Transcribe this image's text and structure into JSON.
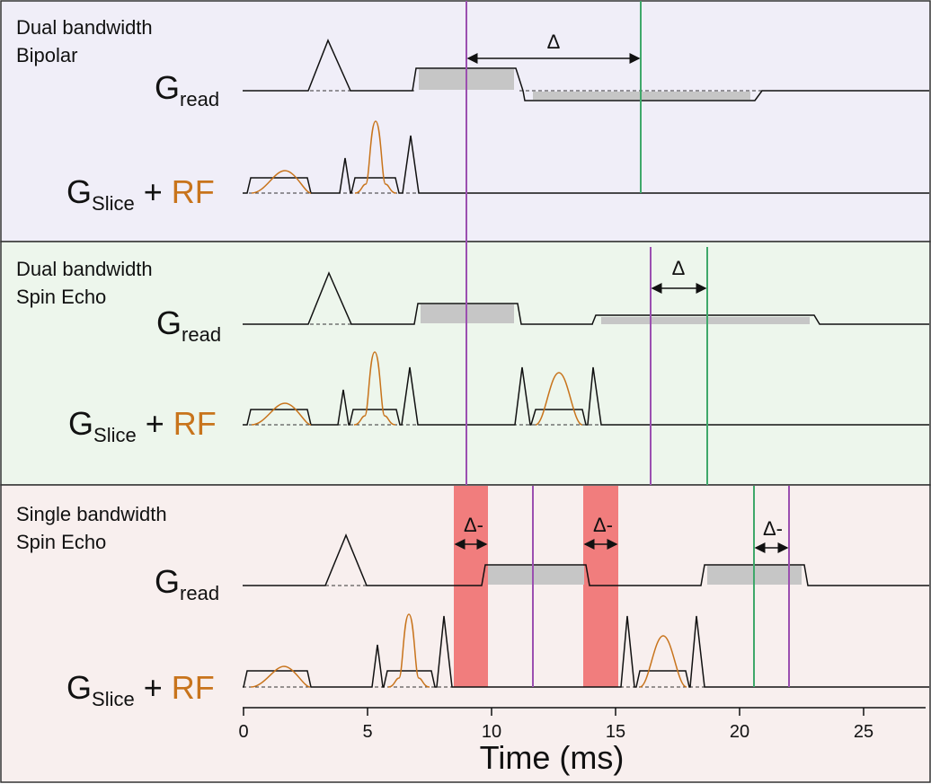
{
  "colors": {
    "panel_bg": [
      "#f0eef8",
      "#edf6ec",
      "#f8efee"
    ],
    "border": "#333333",
    "rf": "#c8741c",
    "purple_marker": "#9b4fb0",
    "green_marker": "#3fa86a",
    "readout_fill": "#c6c6c6",
    "red_band": "#f07070"
  },
  "panels": [
    {
      "title_line1": "Dual bandwidth",
      "title_line2": "Bipolar",
      "gread": {
        "main": "G",
        "sub": "read"
      },
      "gslice": {
        "main": "G",
        "sub": "Slice",
        "plus": " + ",
        "rf": "RF"
      },
      "delta_label": "Δ"
    },
    {
      "title_line1": "Dual bandwidth",
      "title_line2": "Spin Echo",
      "gread": {
        "main": "G",
        "sub": "read"
      },
      "gslice": {
        "main": "G",
        "sub": "Slice",
        "plus": " + ",
        "rf": "RF"
      },
      "delta_label": "Δ"
    },
    {
      "title_line1": "Single bandwidth",
      "title_line2": "Spin Echo",
      "gread": {
        "main": "G",
        "sub": "read"
      },
      "gslice": {
        "main": "G",
        "sub": "Slice",
        "plus": " + ",
        "rf": "RF"
      },
      "delta_labels": [
        "Δ-",
        "Δ-",
        "Δ-"
      ]
    }
  ],
  "axis": {
    "label": "Time (ms)",
    "ticks": [
      "0",
      "5",
      "10",
      "15",
      "20",
      "25"
    ],
    "tick_values": [
      0,
      5,
      10,
      15,
      20,
      25
    ],
    "range_ms": [
      0,
      26.9
    ]
  }
}
